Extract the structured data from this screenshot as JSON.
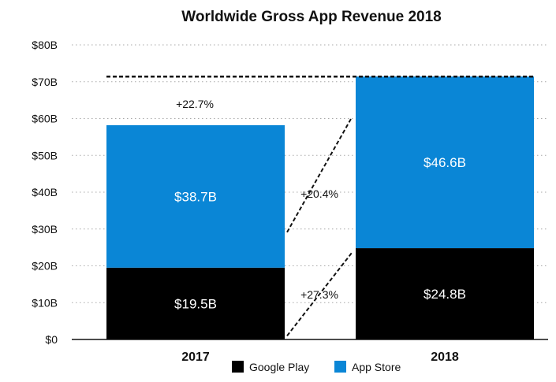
{
  "chart_data": {
    "type": "bar",
    "stacked": true,
    "title": "Worldwide Gross App Revenue 2018",
    "categories": [
      "2017",
      "2018"
    ],
    "series": [
      {
        "name": "Google Play",
        "color": "#000000",
        "values": [
          19.5,
          24.8
        ],
        "labels": [
          "$19.5B",
          "$24.8B"
        ]
      },
      {
        "name": "App Store",
        "color": "#0a86d6",
        "values": [
          38.7,
          46.6
        ],
        "labels": [
          "$38.7B",
          "$46.6B"
        ]
      }
    ],
    "ylim": [
      0,
      80
    ],
    "yticks": [
      0,
      10,
      20,
      30,
      40,
      50,
      60,
      70,
      80
    ],
    "ytick_labels": [
      "$0",
      "$10B",
      "$20B",
      "$30B",
      "$40B",
      "$50B",
      "$60B",
      "$70B",
      "$80B"
    ],
    "grid": true,
    "legend": {
      "position": "bottom-center",
      "items": [
        "Google Play",
        "App Store"
      ]
    },
    "annotations": {
      "total_growth": "+22.7%",
      "app_store_growth": "+20.4%",
      "google_play_growth": "+27.3%"
    },
    "xlabel": "",
    "ylabel": ""
  }
}
